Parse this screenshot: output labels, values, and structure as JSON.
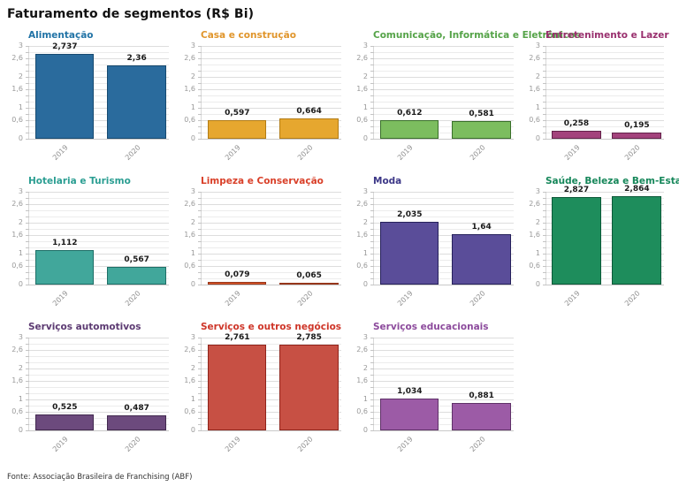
{
  "page_title": "Faturamento de segmentos (R$ Bi)",
  "source_note": "Fonte: Associação Brasileira de Franchising (ABF)",
  "style": {
    "background": "#ffffff",
    "page_title_color": "#111111",
    "value_label_color": "#1a1a1a",
    "ytick_label_color": "#999999",
    "xtick_label_color": "#8f8f8f",
    "gridline_minor": "#ececec",
    "gridline_major": "#dddddd",
    "source_color": "#333333"
  },
  "chart_data": {
    "type": "bar",
    "title": "Faturamento de segmentos (R$ Bi)",
    "unit": "R$ Bi",
    "categories": [
      "2019",
      "2020"
    ],
    "ylim": [
      0,
      3
    ],
    "yticks": [
      0,
      0.6,
      1,
      1.6,
      2,
      2.6,
      3
    ],
    "ytick_labels": [
      "0",
      "0,6",
      "1",
      "1,6",
      "2",
      "2,6",
      "3"
    ],
    "grid_step": 0.2,
    "legend": "none",
    "charts": [
      {
        "id": "alimentacao",
        "title": "Alimentação",
        "values": [
          2.737,
          2.36
        ],
        "value_labels": [
          "2,737",
          "2,36"
        ],
        "fill": "#2A6B9D",
        "stroke": "#174A70",
        "title_color": "#2173A6"
      },
      {
        "id": "casa-e-construcao",
        "title": "Casa e construção",
        "values": [
          0.597,
          0.664
        ],
        "value_labels": [
          "0,597",
          "0,664"
        ],
        "fill": "#E6A72F",
        "stroke": "#B27C15",
        "title_color": "#E0952B"
      },
      {
        "id": "comunicacao-informatica-e-eletronicos",
        "title": "Comunicação, Informática e Eletrônicos",
        "values": [
          0.612,
          0.581
        ],
        "value_labels": [
          "0,612",
          "0,581"
        ],
        "fill": "#7CBD5F",
        "stroke": "#396F2A",
        "title_color": "#55A348"
      },
      {
        "id": "entretenimento-e-lazer",
        "title": "Entretenimento e Lazer",
        "values": [
          0.258,
          0.195
        ],
        "value_labels": [
          "0,258",
          "0,195"
        ],
        "fill": "#A3437C",
        "stroke": "#63224A",
        "title_color": "#99306E"
      },
      {
        "id": "hotelaria-e-turismo",
        "title": "Hotelaria e Turismo",
        "values": [
          1.112,
          0.567
        ],
        "value_labels": [
          "1,112",
          "0,567"
        ],
        "fill": "#41A79B",
        "stroke": "#1E6F67",
        "title_color": "#2B9E92"
      },
      {
        "id": "limpeza-e-conservacao",
        "title": "Limpeza e Conservação",
        "values": [
          0.079,
          0.065
        ],
        "value_labels": [
          "0,079",
          "0,065"
        ],
        "fill": "#E05A2B",
        "stroke": "#96361B",
        "title_color": "#D94029"
      },
      {
        "id": "moda",
        "title": "Moda",
        "values": [
          2.035,
          1.64
        ],
        "value_labels": [
          "2,035",
          "1,64"
        ],
        "fill": "#5A4D99",
        "stroke": "#26215B",
        "title_color": "#3C3787"
      },
      {
        "id": "saude-beleza-e-bem-estar",
        "title": "Saúde, Beleza e Bem-Estar",
        "values": [
          2.827,
          2.864
        ],
        "value_labels": [
          "2,827",
          "2,864"
        ],
        "fill": "#1E8D5C",
        "stroke": "#0C5838",
        "title_color": "#16875A"
      },
      {
        "id": "servicos-automotivos",
        "title": "Serviços automotivos",
        "values": [
          0.525,
          0.487
        ],
        "value_labels": [
          "0,525",
          "0,487"
        ],
        "fill": "#6C4A7D",
        "stroke": "#42294F",
        "title_color": "#5C3A72"
      },
      {
        "id": "servicos-e-outros-negocios",
        "title": "Serviços e outros negócios",
        "values": [
          2.761,
          2.785
        ],
        "value_labels": [
          "2,761",
          "2,785"
        ],
        "fill": "#C75044",
        "stroke": "#8F241B",
        "title_color": "#CE3528"
      },
      {
        "id": "servicos-educacionais",
        "title": "Serviços educacionais",
        "values": [
          1.034,
          0.881
        ],
        "value_labels": [
          "1,034",
          "0,881"
        ],
        "fill": "#9C5BA6",
        "stroke": "#5F3168",
        "title_color": "#8C4A9C"
      }
    ]
  }
}
